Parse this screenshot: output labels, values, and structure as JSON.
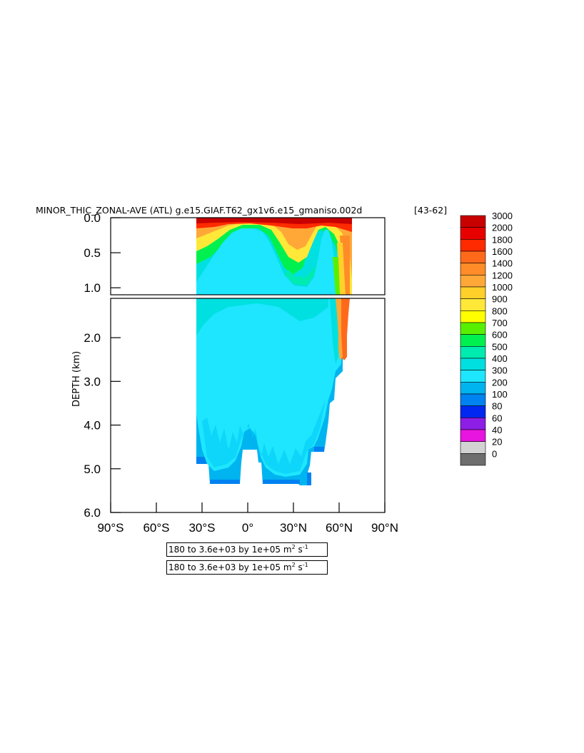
{
  "chart_data": {
    "type": "heatmap",
    "title": "MINOR_THIC_ZONAL-AVE (ATL) g.e15.GIAF.T62_gx1v6.e15_gmaniso.002d",
    "title_suffix": "[43-62]",
    "ylabel": "DEPTH (km)",
    "xlabel": "",
    "x_ticks": [
      "90°S",
      "60°S",
      "30°S",
      "0°",
      "30°N",
      "60°N",
      "90°N"
    ],
    "x_values": [
      -90,
      -60,
      -30,
      0,
      30,
      60,
      90
    ],
    "y_ticks_upper": [
      "0.0",
      "0.5",
      "1.0"
    ],
    "y_ticks_lower": [
      "2.0",
      "3.0",
      "4.0",
      "5.0",
      "6.0"
    ],
    "xlim": [
      -90,
      90
    ],
    "ylim_upper": [
      0.0,
      1.1
    ],
    "ylim_lower": [
      1.1,
      6.0
    ],
    "variable": "MINOR_THIC_ZONAL-AVE",
    "region": "ATL",
    "contour_levels": [
      "3000",
      "2000",
      "1800",
      "1600",
      "1400",
      "1200",
      "1000",
      "900",
      "800",
      "700",
      "600",
      "500",
      "400",
      "300",
      "200",
      "100",
      "80",
      "60",
      "40",
      "20",
      "0"
    ],
    "colors": [
      "#c80000",
      "#e80000",
      "#ff2a00",
      "#ff6a1a",
      "#ff8c28",
      "#ffa838",
      "#ffd02a",
      "#ffe838",
      "#ffff00",
      "#58f000",
      "#00f050",
      "#00ebb0",
      "#00e0e0",
      "#1ee6ff",
      "#00b4f0",
      "#0082f0",
      "#0028f0",
      "#8c1ee6",
      "#e814e0",
      "#d2d2d2",
      "#6e6e6e"
    ],
    "value_range_text": "180 to 3.6e+03 by 1e+05 m",
    "unit_suffix": "s",
    "superscript_2": "2",
    "superscript_neg1": "-1",
    "grid": false
  }
}
